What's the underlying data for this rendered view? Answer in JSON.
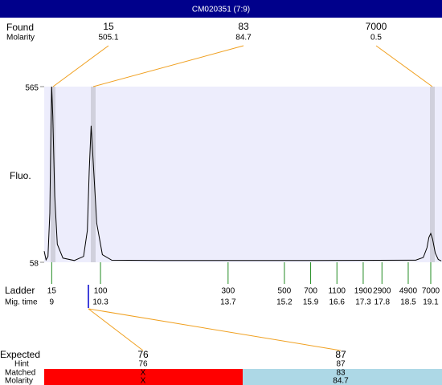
{
  "header": {
    "title": "CM020351 (7:9)"
  },
  "found": {
    "label": "Found",
    "sublabel": "Molarity",
    "items": [
      {
        "size": "15",
        "molarity": "505.1"
      },
      {
        "size": "83",
        "molarity": "84.7"
      },
      {
        "size": "7000",
        "molarity": "0.5"
      }
    ]
  },
  "chart_data": {
    "type": "line",
    "y_label": "Fluo.",
    "color": "#000000",
    "ylim": [
      58,
      565
    ],
    "yticks": [
      58,
      565
    ],
    "xlim": [
      8.8,
      19.4
    ],
    "x": [
      8.8,
      8.85,
      8.9,
      8.95,
      8.98,
      9.0,
      9.03,
      9.08,
      9.15,
      9.3,
      9.6,
      9.85,
      9.95,
      10.0,
      10.05,
      10.1,
      10.2,
      10.35,
      10.6,
      12,
      16,
      18.7,
      18.9,
      19.0,
      19.05,
      19.1,
      19.15,
      19.22,
      19.3,
      19.38
    ],
    "values": [
      90,
      65,
      75,
      200,
      450,
      565,
      480,
      250,
      110,
      70,
      63,
      75,
      150,
      320,
      452,
      360,
      170,
      80,
      64,
      63,
      63,
      64,
      72,
      100,
      130,
      141,
      125,
      85,
      66,
      62
    ]
  },
  "ladder": {
    "label": "Ladder",
    "sublabel": "Mig. time",
    "items": [
      {
        "size": "15",
        "time": 9
      },
      {
        "size": "100",
        "time": 10.3
      },
      {
        "size": "300",
        "time": 13.7
      },
      {
        "size": "500",
        "time": 15.2
      },
      {
        "size": "700",
        "time": 15.9
      },
      {
        "size": "1100",
        "time": 16.6
      },
      {
        "size": "1900",
        "time": 17.3
      },
      {
        "size": "2900",
        "time": 17.8
      },
      {
        "size": "4900",
        "time": 18.5
      },
      {
        "size": "7000",
        "time": 19.1
      }
    ]
  },
  "expected": {
    "labels": [
      "Expected",
      "Hint",
      "Matched",
      "Molarity"
    ],
    "columns": [
      {
        "expected": "76",
        "hint": "76",
        "matched": "X",
        "molarity": "X"
      },
      {
        "expected": "87",
        "hint": "87",
        "matched": "83",
        "molarity": "84.7"
      }
    ]
  }
}
